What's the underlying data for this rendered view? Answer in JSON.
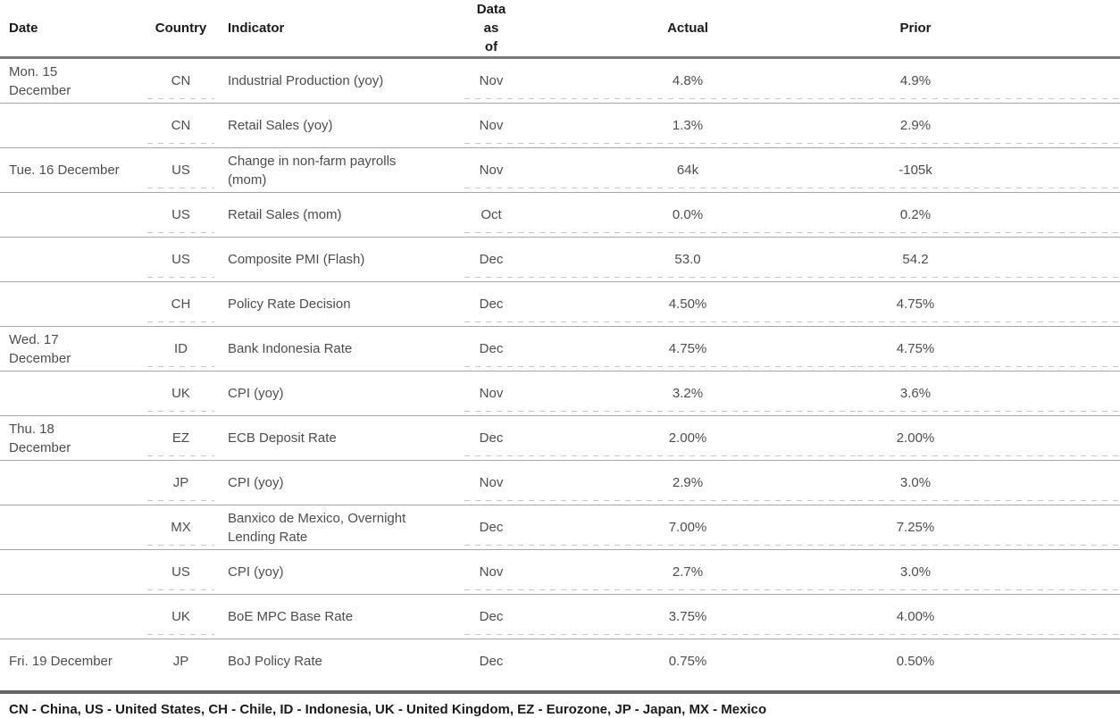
{
  "table": {
    "columns": [
      "Date",
      "Country",
      "Indicator",
      "Data\nas\nof",
      "Actual",
      "Prior"
    ],
    "rows": [
      {
        "date": "Mon. 15\nDecember",
        "country": "CN",
        "indicator": "Industrial Production (yoy)",
        "as_of": "Nov",
        "actual": "4.8%",
        "prior": "4.9%"
      },
      {
        "date": "",
        "country": "CN",
        "indicator": "Retail Sales (yoy)",
        "as_of": "Nov",
        "actual": "1.3%",
        "prior": "2.9%"
      },
      {
        "date": "Tue. 16 December",
        "country": "US",
        "indicator": "Change in non-farm payrolls\n(mom)",
        "as_of": "Nov",
        "actual": "64k",
        "prior": "-105k"
      },
      {
        "date": "",
        "country": "US",
        "indicator": "Retail Sales (mom)",
        "as_of": "Oct",
        "actual": "0.0%",
        "prior": "0.2%"
      },
      {
        "date": "",
        "country": "US",
        "indicator": "Composite PMI (Flash)",
        "as_of": "Dec",
        "actual": "53.0",
        "prior": "54.2"
      },
      {
        "date": "",
        "country": "CH",
        "indicator": "Policy Rate Decision",
        "as_of": "Dec",
        "actual": "4.50%",
        "prior": "4.75%"
      },
      {
        "date": "Wed. 17\nDecember",
        "country": "ID",
        "indicator": "Bank Indonesia Rate",
        "as_of": "Dec",
        "actual": "4.75%",
        "prior": "4.75%"
      },
      {
        "date": "",
        "country": "UK",
        "indicator": "CPI (yoy)",
        "as_of": "Nov",
        "actual": "3.2%",
        "prior": "3.6%"
      },
      {
        "date": "Thu. 18\nDecember",
        "country": "EZ",
        "indicator": "ECB Deposit Rate",
        "as_of": "Dec",
        "actual": "2.00%",
        "prior": "2.00%"
      },
      {
        "date": "",
        "country": "JP",
        "indicator": "CPI (yoy)",
        "as_of": "Nov",
        "actual": "2.9%",
        "prior": "3.0%"
      },
      {
        "date": "",
        "country": "MX",
        "indicator": "Banxico de Mexico, Overnight\nLending Rate",
        "as_of": "Dec",
        "actual": "7.00%",
        "prior": "7.25%"
      },
      {
        "date": "",
        "country": "US",
        "indicator": "CPI (yoy)",
        "as_of": "Nov",
        "actual": "2.7%",
        "prior": "3.0%"
      },
      {
        "date": "",
        "country": "UK",
        "indicator": "BoE MPC Base Rate",
        "as_of": "Dec",
        "actual": "3.75%",
        "prior": "4.00%"
      },
      {
        "date": "Fri. 19 December",
        "country": "JP",
        "indicator": "BoJ Policy Rate",
        "as_of": "Dec",
        "actual": "0.75%",
        "prior": "0.50%"
      }
    ]
  },
  "legend": {
    "text": "CN - China, US - United States, CH - Chile, ID - Indonesia, UK - United Kingdom, EZ - Eurozone, JP - Japan, MX - Mexico"
  },
  "colors": {
    "header_text": "#1a1a1a",
    "body_text": "#4d4d4d",
    "row_separator": "#a6a6a6",
    "header_rule": "#7a7a7a",
    "footer_rule": "#646464"
  }
}
